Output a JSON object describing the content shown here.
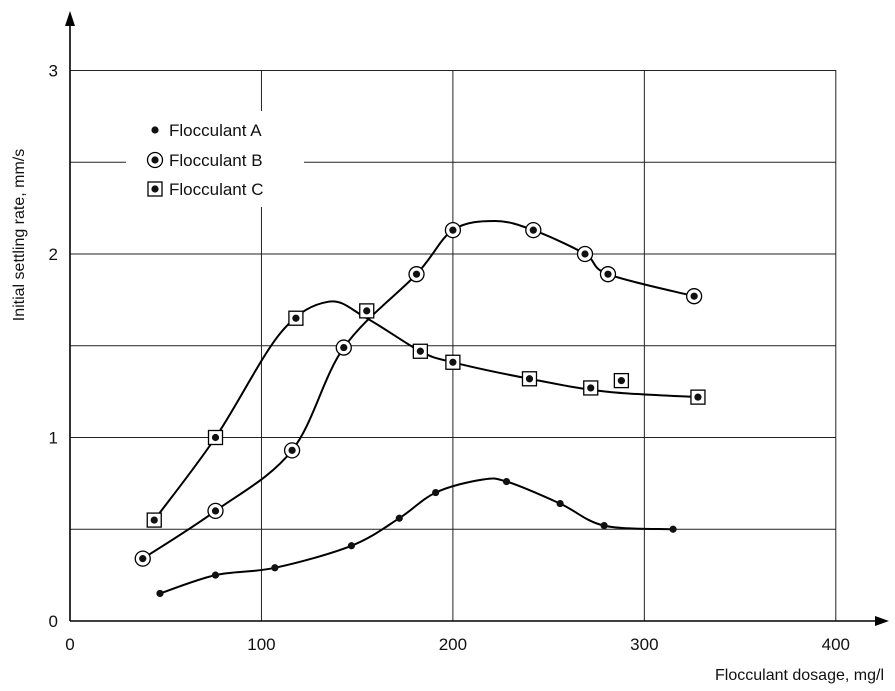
{
  "chart_data": {
    "type": "scatter",
    "title": "",
    "xlabel": "Flocculant dosage, mg/l",
    "ylabel": "Initial settling rate, mm/s",
    "xlim": [
      0,
      420
    ],
    "ylim": [
      0,
      3.3
    ],
    "x_ticks": [
      "0",
      "100",
      "200",
      "300",
      "400"
    ],
    "y_ticks": [
      "0",
      "1",
      "2",
      "3"
    ],
    "grid": true,
    "legend_position": "top-left",
    "series": [
      {
        "name": "Flocculant A",
        "marker": "dot",
        "x": [
          47,
          76,
          107,
          147,
          172,
          191,
          228,
          256,
          279,
          315
        ],
        "y": [
          0.15,
          0.25,
          0.29,
          0.41,
          0.56,
          0.7,
          0.76,
          0.64,
          0.52,
          0.5
        ],
        "curve_x": [
          47,
          76,
          107,
          147,
          172,
          191,
          215,
          228,
          256,
          279,
          315
        ],
        "curve_y": [
          0.15,
          0.25,
          0.29,
          0.41,
          0.56,
          0.7,
          0.77,
          0.76,
          0.64,
          0.52,
          0.5
        ]
      },
      {
        "name": "Flocculant B",
        "marker": "circle-dot",
        "x": [
          38,
          76,
          116,
          143,
          181,
          200,
          242,
          269,
          281,
          326
        ],
        "y": [
          0.34,
          0.6,
          0.93,
          1.49,
          1.89,
          2.13,
          2.13,
          2.0,
          1.89,
          1.77
        ],
        "curve_x": [
          38,
          76,
          116,
          143,
          181,
          200,
          222,
          242,
          269,
          281,
          326
        ],
        "curve_y": [
          0.34,
          0.6,
          0.93,
          1.49,
          1.89,
          2.13,
          2.18,
          2.13,
          2.0,
          1.89,
          1.77
        ]
      },
      {
        "name": "Flocculant C",
        "marker": "square-dot",
        "x": [
          44,
          76,
          118,
          155,
          183,
          200,
          240,
          272,
          288,
          328
        ],
        "y": [
          0.55,
          1.0,
          1.65,
          1.69,
          1.47,
          1.41,
          1.32,
          1.27,
          1.31,
          1.22
        ],
        "curve_x": [
          44,
          76,
          110,
          135,
          155,
          183,
          200,
          240,
          280,
          328
        ],
        "curve_y": [
          0.55,
          1.0,
          1.57,
          1.74,
          1.65,
          1.47,
          1.41,
          1.32,
          1.25,
          1.22
        ]
      }
    ]
  }
}
